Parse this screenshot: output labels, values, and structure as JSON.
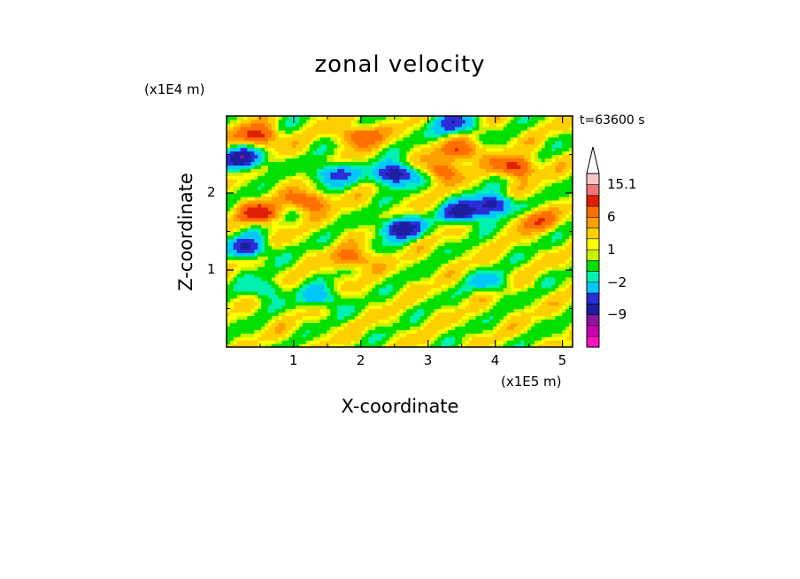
{
  "chart_data": {
    "type": "heatmap",
    "title": "zonal velocity",
    "xlabel": "X-coordinate",
    "ylabel": "Z-coordinate",
    "x_units": "(x1E5 m)",
    "y_units": "(x1E4 m)",
    "time_label": "t=63600 s",
    "xlim": [
      0,
      5.15
    ],
    "ylim": [
      0,
      3.0
    ],
    "x_ticks": [
      {
        "value": 1,
        "label": "1"
      },
      {
        "value": 2,
        "label": "2"
      },
      {
        "value": 3,
        "label": "3"
      },
      {
        "value": 4,
        "label": "4"
      },
      {
        "value": 5,
        "label": "5"
      }
    ],
    "y_ticks": [
      {
        "value": 1,
        "label": "1"
      },
      {
        "value": 2,
        "label": "2"
      }
    ],
    "colorbar": {
      "levels": [
        {
          "color": "#ff10c0"
        },
        {
          "color": "#c800b0"
        },
        {
          "color": "#8c14a0"
        },
        {
          "color": "#1e1ea0"
        },
        {
          "color": "#2c2cd8"
        },
        {
          "color": "#00c8ff"
        },
        {
          "color": "#00f0b0"
        },
        {
          "color": "#00e000"
        },
        {
          "color": "#c8f000"
        },
        {
          "color": "#ffff00"
        },
        {
          "color": "#ffd000"
        },
        {
          "color": "#ffa000"
        },
        {
          "color": "#ff7000"
        },
        {
          "color": "#e02000"
        },
        {
          "color": "#f07878"
        },
        {
          "color": "#f8c8c8"
        }
      ],
      "tick_labels": [
        {
          "label": "15.1",
          "boundary": 15
        },
        {
          "label": "6",
          "boundary": 12
        },
        {
          "label": "1",
          "boundary": 9
        },
        {
          "label": "−2",
          "boundary": 6
        },
        {
          "label": "−9",
          "boundary": 3
        }
      ],
      "extend": "max"
    },
    "features": [
      {
        "x": 0.25,
        "z": 2.45,
        "value": -9
      },
      {
        "x": 0.3,
        "z": 1.3,
        "value": -7
      },
      {
        "x": 1.6,
        "z": 2.25,
        "value": -6
      },
      {
        "x": 2.5,
        "z": 2.25,
        "value": -9
      },
      {
        "x": 2.6,
        "z": 1.55,
        "value": -9
      },
      {
        "x": 3.5,
        "z": 1.75,
        "value": -8
      },
      {
        "x": 3.95,
        "z": 1.85,
        "value": -8
      },
      {
        "x": 3.4,
        "z": 2.9,
        "value": -6
      },
      {
        "x": 0.45,
        "z": 2.75,
        "value": 6
      },
      {
        "x": 0.5,
        "z": 1.75,
        "value": 6
      },
      {
        "x": 1.2,
        "z": 1.9,
        "value": 5
      },
      {
        "x": 1.9,
        "z": 1.15,
        "value": 4
      },
      {
        "x": 2.0,
        "z": 2.75,
        "value": 5
      },
      {
        "x": 3.2,
        "z": 2.3,
        "value": 4
      },
      {
        "x": 3.5,
        "z": 2.55,
        "value": 5
      },
      {
        "x": 4.3,
        "z": 2.35,
        "value": 6
      },
      {
        "x": 4.6,
        "z": 1.65,
        "value": 4
      },
      {
        "x": 1.4,
        "z": 0.65,
        "value": -4
      },
      {
        "x": 0.55,
        "z": 0.75,
        "value": -3
      },
      {
        "x": 3.9,
        "z": 0.85,
        "value": -3
      }
    ]
  }
}
